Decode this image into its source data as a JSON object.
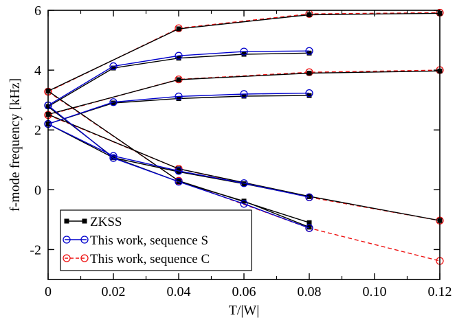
{
  "chart_data": {
    "type": "line",
    "xlabel": "T/|W|",
    "ylabel": "f-mode frequency [kHz]",
    "xlim": [
      0,
      0.12
    ],
    "ylim": [
      -3,
      6
    ],
    "x_ticks": [
      0,
      0.02,
      0.04,
      0.06,
      0.08,
      0.1,
      0.12
    ],
    "x_tick_labels": [
      "0",
      "0.02",
      "0.04",
      "0.06",
      "0.08",
      "0.10",
      "0.12"
    ],
    "y_ticks": [
      -2,
      0,
      2,
      4,
      6
    ],
    "y_tick_labels": [
      "-2",
      "0",
      "2",
      "4",
      "6"
    ],
    "grid": false,
    "legend_position": "bottom-left",
    "series": [
      {
        "name": "ZKSS",
        "color": "#000000",
        "line_style": "solid",
        "marker": "filled-square",
        "curves": [
          {
            "x": [
              0,
              0.04,
              0.08,
              0.12
            ],
            "y": [
              3.3,
              5.38,
              5.85,
              5.9
            ]
          },
          {
            "x": [
              0,
              0.02,
              0.04,
              0.06,
              0.08
            ],
            "y": [
              2.78,
              4.07,
              4.4,
              4.53,
              4.57
            ]
          },
          {
            "x": [
              0,
              0.04,
              0.08,
              0.12
            ],
            "y": [
              2.52,
              3.68,
              3.9,
              3.97
            ]
          },
          {
            "x": [
              0,
              0.02,
              0.04,
              0.06,
              0.08
            ],
            "y": [
              2.2,
              2.9,
              3.05,
              3.13,
              3.15
            ]
          },
          {
            "x": [
              0,
              0.04,
              0.08,
              0.12
            ],
            "y": [
              2.52,
              0.7,
              -0.22,
              -1.03
            ]
          },
          {
            "x": [
              0,
              0.02,
              0.04,
              0.06,
              0.08
            ],
            "y": [
              2.2,
              1.07,
              0.6,
              0.2,
              -0.23
            ]
          },
          {
            "x": [
              0,
              0.04,
              0.08
            ],
            "y": [
              3.3,
              0.3,
              -1.1
            ]
          },
          {
            "x": [
              0,
              0.02,
              0.04,
              0.06,
              0.08
            ],
            "y": [
              2.78,
              1.08,
              0.27,
              -0.38,
              -1.25
            ]
          }
        ]
      },
      {
        "name": "This work, sequence S",
        "color": "#0000cc",
        "line_style": "solid",
        "marker": "open-circle",
        "curves": [
          {
            "x": [
              0,
              0.02,
              0.04,
              0.06,
              0.08
            ],
            "y": [
              2.82,
              4.13,
              4.48,
              4.62,
              4.64
            ]
          },
          {
            "x": [
              0,
              0.02,
              0.04,
              0.06,
              0.08
            ],
            "y": [
              2.2,
              2.93,
              3.12,
              3.2,
              3.23
            ]
          },
          {
            "x": [
              0,
              0.02,
              0.04,
              0.06,
              0.08
            ],
            "y": [
              2.2,
              1.13,
              0.63,
              0.22,
              -0.25
            ]
          },
          {
            "x": [
              0,
              0.02,
              0.04,
              0.06,
              0.08
            ],
            "y": [
              2.82,
              1.06,
              0.27,
              -0.47,
              -1.28
            ]
          }
        ]
      },
      {
        "name": "This work, sequence C",
        "color": "#ee1111",
        "line_style": "dashed",
        "marker": "open-circle",
        "curves": [
          {
            "x": [
              0,
              0.04,
              0.08,
              0.12
            ],
            "y": [
              3.28,
              5.4,
              5.88,
              5.92
            ]
          },
          {
            "x": [
              0,
              0.04,
              0.08,
              0.12
            ],
            "y": [
              2.5,
              3.69,
              3.93,
              4.0
            ]
          },
          {
            "x": [
              0,
              0.04,
              0.08,
              0.12
            ],
            "y": [
              2.5,
              0.7,
              -0.25,
              -1.03
            ]
          },
          {
            "x": [
              0,
              0.04,
              0.08,
              0.12
            ],
            "y": [
              3.28,
              0.3,
              -1.28,
              -2.38
            ]
          }
        ]
      }
    ]
  }
}
